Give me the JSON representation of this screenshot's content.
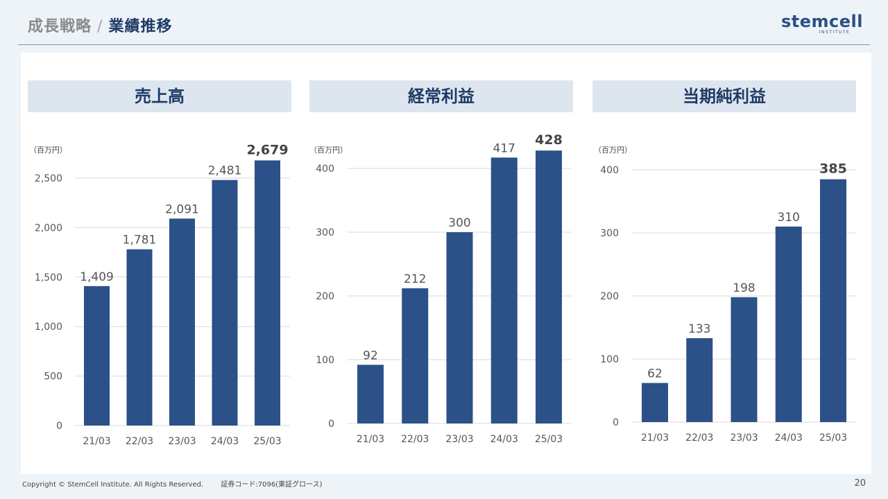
{
  "header": {
    "title_prefix": "成長戦略",
    "title_separator": "/",
    "title_main": "業績推移",
    "logo_word": "stemcell",
    "logo_sub": "INSTITUTE"
  },
  "footer": {
    "copyright": "Copyright © StemCell Institute. All Rights Reserved.",
    "code": "証券コード:7096(東証グロース)",
    "page_number": "20"
  },
  "colors": {
    "bar": "#2c5188",
    "accent": "#1e3a66",
    "panel_bg": "#dde6ef",
    "grid": "#d9d9d9"
  },
  "chart_data": [
    {
      "type": "bar",
      "title": "売上高",
      "unit": "（百万円）",
      "categories": [
        "21/03",
        "22/03",
        "23/03",
        "24/03",
        "25/03"
      ],
      "values": [
        1409,
        1781,
        2091,
        2481,
        2679
      ],
      "labels": [
        "1,409",
        "1,781",
        "2,091",
        "2,481",
        "2,679"
      ],
      "highlight_last": true,
      "ylim": [
        0,
        2500
      ],
      "yticks": [
        0,
        500,
        1000,
        1500,
        2000,
        2500
      ],
      "ytick_labels": [
        "0",
        "500",
        "1,000",
        "1,500",
        "2,000",
        "2,500"
      ],
      "grid": true
    },
    {
      "type": "bar",
      "title": "経常利益",
      "unit": "（百万円）",
      "categories": [
        "21/03",
        "22/03",
        "23/03",
        "24/03",
        "25/03"
      ],
      "values": [
        92,
        212,
        300,
        417,
        428
      ],
      "labels": [
        "92",
        "212",
        "300",
        "417",
        "428"
      ],
      "highlight_last": true,
      "ylim": [
        0,
        400
      ],
      "yticks": [
        0,
        100,
        200,
        300,
        400
      ],
      "ytick_labels": [
        "0",
        "100",
        "200",
        "300",
        "400"
      ],
      "grid": true
    },
    {
      "type": "bar",
      "title": "当期純利益",
      "unit": "（百万円）",
      "categories": [
        "21/03",
        "22/03",
        "23/03",
        "24/03",
        "25/03"
      ],
      "values": [
        62,
        133,
        198,
        310,
        385
      ],
      "labels": [
        "62",
        "133",
        "198",
        "310",
        "385"
      ],
      "highlight_last": true,
      "ylim": [
        0,
        400
      ],
      "yticks": [
        0,
        100,
        200,
        300,
        400
      ],
      "ytick_labels": [
        "0",
        "100",
        "200",
        "300",
        "400"
      ],
      "grid": true
    }
  ]
}
